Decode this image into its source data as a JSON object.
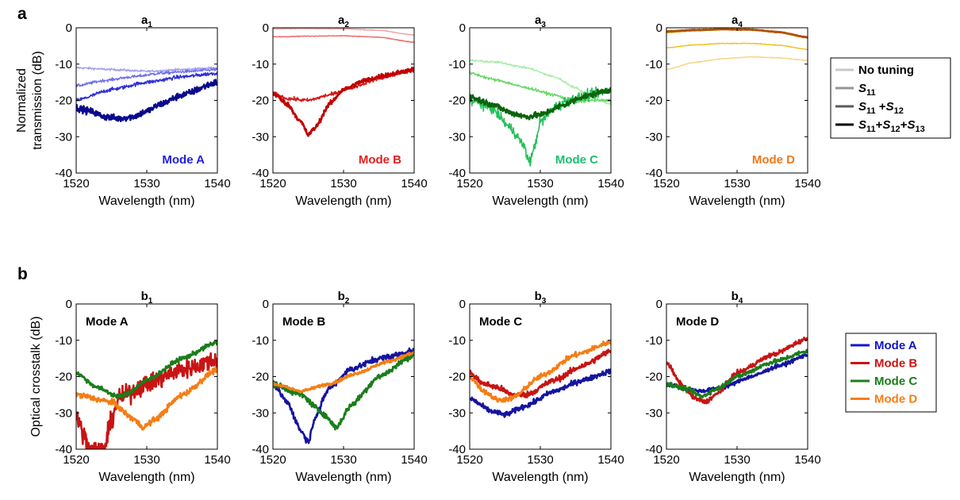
{
  "figure": {
    "row_labels": [
      "a",
      "b"
    ]
  },
  "chart_data": [
    {
      "panel": "a1",
      "type": "line",
      "title": "a",
      "title_sub": "1",
      "xlabel": "Wavelength (nm)",
      "ylabel": "Normalized\ntransmission (dB)",
      "xlim": [
        1520,
        1540
      ],
      "ylim": [
        -40,
        0
      ],
      "xticks": [
        1520,
        1530,
        1540
      ],
      "yticks": [
        0,
        -10,
        -20,
        -30,
        -40
      ],
      "annotation": {
        "text": "Mode A",
        "color": "#1f1fe0"
      },
      "series": [
        {
          "color": "#a0a0f0",
          "width": 1.4,
          "noise": 0.3,
          "x": [
            1520,
            1525,
            1530,
            1535,
            1540
          ],
          "y": [
            -11,
            -11.5,
            -12,
            -11.5,
            -11
          ]
        },
        {
          "color": "#7070e8",
          "width": 1.4,
          "noise": 0.4,
          "x": [
            1520,
            1524,
            1528,
            1532,
            1536,
            1540
          ],
          "y": [
            -16,
            -14.5,
            -13.5,
            -12.5,
            -12,
            -11.5
          ]
        },
        {
          "color": "#3030d8",
          "width": 1.6,
          "noise": 0.5,
          "x": [
            1520,
            1525,
            1530,
            1535,
            1540
          ],
          "y": [
            -20,
            -17,
            -15,
            -13.5,
            -12.5
          ]
        },
        {
          "color": "#0a0a8c",
          "width": 2.6,
          "noise": 0.9,
          "x": [
            1520,
            1522,
            1524,
            1526,
            1528,
            1530,
            1532,
            1535,
            1540
          ],
          "y": [
            -22,
            -23,
            -24.5,
            -25,
            -24.5,
            -23,
            -21,
            -18.5,
            -15
          ]
        }
      ]
    },
    {
      "panel": "a2",
      "type": "line",
      "title": "a",
      "title_sub": "2",
      "xlabel": "Wavelength (nm)",
      "ylabel": "",
      "xlim": [
        1520,
        1540
      ],
      "ylim": [
        -40,
        0
      ],
      "xticks": [
        1520,
        1530,
        1540
      ],
      "yticks": [
        0,
        -10,
        -20,
        -30,
        -40
      ],
      "annotation": {
        "text": "Mode B",
        "color": "#e02020"
      },
      "series": [
        {
          "color": "#f4a0a0",
          "width": 1.4,
          "noise": 0.1,
          "x": [
            1520,
            1525,
            1530,
            1535,
            1540
          ],
          "y": [
            -0.3,
            -0.2,
            -0.3,
            -0.7,
            -2
          ]
        },
        {
          "color": "#ee6a6a",
          "width": 1.4,
          "noise": 0.1,
          "x": [
            1520,
            1525,
            1530,
            1535,
            1540
          ],
          "y": [
            -2.5,
            -2.3,
            -2.2,
            -2.6,
            -4
          ]
        },
        {
          "color": "#d81818",
          "width": 1.6,
          "noise": 0.5,
          "x": [
            1520,
            1522,
            1525,
            1528,
            1531,
            1535,
            1540
          ],
          "y": [
            -18,
            -19.5,
            -20,
            -18.5,
            -16.5,
            -14,
            -11.5
          ]
        },
        {
          "color": "#c00000",
          "width": 2.6,
          "noise": 0.6,
          "x": [
            1520,
            1522,
            1524,
            1525,
            1526,
            1528,
            1530,
            1533,
            1536,
            1540
          ],
          "y": [
            -18,
            -21,
            -26,
            -29.5,
            -27.5,
            -21,
            -17,
            -14.5,
            -13,
            -11.5
          ]
        }
      ]
    },
    {
      "panel": "a3",
      "type": "line",
      "title": "a",
      "title_sub": "3",
      "xlabel": "Wavelength (nm)",
      "ylabel": "",
      "xlim": [
        1520,
        1540
      ],
      "ylim": [
        -40,
        0
      ],
      "xticks": [
        1520,
        1530,
        1540
      ],
      "yticks": [
        0,
        -10,
        -20,
        -30,
        -40
      ],
      "annotation": {
        "text": "Mode C",
        "color": "#1ec070"
      },
      "series": [
        {
          "color": "#a8eca8",
          "width": 1.4,
          "noise": 0.3,
          "x": [
            1520,
            1524,
            1528,
            1532,
            1535,
            1537,
            1540
          ],
          "y": [
            -9,
            -9.5,
            -11,
            -13.5,
            -16.5,
            -19,
            -21
          ]
        },
        {
          "color": "#66d866",
          "width": 1.4,
          "noise": 0.4,
          "x": [
            1520,
            1524,
            1528,
            1532,
            1535,
            1537,
            1540
          ],
          "y": [
            -12.5,
            -14.5,
            -16.5,
            -18.5,
            -20.5,
            -20,
            -20
          ]
        },
        {
          "color": "#22c058",
          "width": 1.6,
          "noise": 1.4,
          "x": [
            1520,
            1523,
            1526,
            1527.5,
            1528.5,
            1529,
            1530,
            1532,
            1534,
            1537,
            1540
          ],
          "y": [
            -20,
            -22,
            -28,
            -32,
            -37,
            -34,
            -26,
            -22,
            -20,
            -18.5,
            -17
          ]
        },
        {
          "color": "#0a640a",
          "width": 2.6,
          "noise": 0.8,
          "x": [
            1520,
            1523,
            1526,
            1528,
            1530,
            1533,
            1536,
            1540
          ],
          "y": [
            -19,
            -21,
            -23.5,
            -24.5,
            -24,
            -21.5,
            -19,
            -17
          ]
        }
      ]
    },
    {
      "panel": "a4",
      "type": "line",
      "title": "a",
      "title_sub": "4",
      "xlabel": "Wavelength (nm)",
      "ylabel": "",
      "xlim": [
        1520,
        1540
      ],
      "ylim": [
        -40,
        0
      ],
      "xticks": [
        1520,
        1530,
        1540
      ],
      "yticks": [
        0,
        -10,
        -20,
        -30,
        -40
      ],
      "annotation": {
        "text": "Mode D",
        "color": "#f07818"
      },
      "series": [
        {
          "color": "#f8d488",
          "width": 1.4,
          "noise": 0.1,
          "x": [
            1520,
            1524,
            1528,
            1532,
            1536,
            1540
          ],
          "y": [
            -11.5,
            -9.5,
            -8.5,
            -8,
            -8.3,
            -9
          ]
        },
        {
          "color": "#f0c020",
          "width": 1.4,
          "noise": 0.1,
          "x": [
            1520,
            1524,
            1528,
            1532,
            1536,
            1540
          ],
          "y": [
            -5.5,
            -4.7,
            -4.3,
            -4.3,
            -4.8,
            -6
          ]
        },
        {
          "color": "#e8a020",
          "width": 1.8,
          "noise": 0.1,
          "x": [
            1520,
            1524,
            1528,
            1532,
            1536,
            1540
          ],
          "y": [
            -1.3,
            -0.8,
            -0.5,
            -0.6,
            -1.3,
            -2.8
          ]
        },
        {
          "color": "#b05000",
          "width": 2.6,
          "noise": 0.1,
          "x": [
            1520,
            1524,
            1528,
            1532,
            1536,
            1540
          ],
          "y": [
            -1,
            -0.6,
            -0.4,
            -0.5,
            -1.2,
            -2.6
          ]
        }
      ]
    },
    {
      "panel": "b1",
      "type": "line",
      "title": "b",
      "title_sub": "1",
      "xlabel": "Wavelength (nm)",
      "ylabel": "Optical crosstalk (dB)",
      "xlim": [
        1520,
        1540
      ],
      "ylim": [
        -40,
        0
      ],
      "xticks": [
        1520,
        1530,
        1540
      ],
      "yticks": [
        0,
        -10,
        -20,
        -30,
        -40
      ],
      "annotation": {
        "text": "Mode A",
        "color": "#000000"
      },
      "series": [
        {
          "name": "Mode B",
          "color": "#c81414",
          "width": 2.6,
          "noise": 2.5,
          "x": [
            1520,
            1521,
            1522,
            1523,
            1524,
            1525,
            1526,
            1530,
            1535,
            1540
          ],
          "y": [
            -30,
            -36,
            -40,
            -40,
            -40,
            -32,
            -26,
            -22,
            -18,
            -15.5
          ]
        },
        {
          "name": "Mode C",
          "color": "#1a7d1a",
          "width": 2.6,
          "noise": 0.6,
          "x": [
            1520,
            1523,
            1526,
            1527,
            1530,
            1535,
            1540
          ],
          "y": [
            -19,
            -23,
            -25.5,
            -25,
            -21,
            -15,
            -10.5
          ]
        },
        {
          "name": "Mode D",
          "color": "#f57d14",
          "width": 2.6,
          "noise": 0.8,
          "x": [
            1520,
            1525,
            1528,
            1529.5,
            1531,
            1535,
            1540
          ],
          "y": [
            -25,
            -27,
            -31.5,
            -34,
            -32,
            -25,
            -18
          ]
        }
      ]
    },
    {
      "panel": "b2",
      "type": "line",
      "title": "b",
      "title_sub": "2",
      "xlabel": "Wavelength (nm)",
      "ylabel": "",
      "xlim": [
        1520,
        1540
      ],
      "ylim": [
        -40,
        0
      ],
      "xticks": [
        1520,
        1530,
        1540
      ],
      "yticks": [
        0,
        -10,
        -20,
        -30,
        -40
      ],
      "annotation": {
        "text": "Mode B",
        "color": "#000000"
      },
      "series": [
        {
          "name": "Mode A",
          "color": "#1414a0",
          "width": 2.6,
          "noise": 0.8,
          "x": [
            1520,
            1522,
            1524,
            1525,
            1526,
            1528,
            1531,
            1535,
            1540
          ],
          "y": [
            -22,
            -27,
            -35,
            -38,
            -31,
            -23,
            -18,
            -15,
            -13
          ]
        },
        {
          "name": "Mode C",
          "color": "#1a7d1a",
          "width": 2.6,
          "noise": 0.8,
          "x": [
            1520,
            1524,
            1527,
            1529,
            1531,
            1535,
            1540
          ],
          "y": [
            -22,
            -25,
            -30,
            -34,
            -28,
            -20,
            -14
          ]
        },
        {
          "name": "Mode D",
          "color": "#f57d14",
          "width": 2.6,
          "noise": 0.4,
          "x": [
            1520,
            1524,
            1528,
            1532,
            1536,
            1540
          ],
          "y": [
            -22,
            -24,
            -22,
            -19,
            -16,
            -13.5
          ]
        }
      ]
    },
    {
      "panel": "b3",
      "type": "line",
      "title": "b",
      "title_sub": "3",
      "xlabel": "Wavelength (nm)",
      "ylabel": "",
      "xlim": [
        1520,
        1540
      ],
      "ylim": [
        -40,
        0
      ],
      "xticks": [
        1520,
        1530,
        1540
      ],
      "yticks": [
        0,
        -10,
        -20,
        -30,
        -40
      ],
      "annotation": {
        "text": "Mode C",
        "color": "#000000"
      },
      "series": [
        {
          "name": "Mode A",
          "color": "#1414a0",
          "width": 2.6,
          "noise": 0.7,
          "x": [
            1520,
            1523,
            1525,
            1528,
            1532,
            1536,
            1540
          ],
          "y": [
            -26,
            -29.5,
            -30.5,
            -28,
            -24,
            -21,
            -18.5
          ]
        },
        {
          "name": "Mode B",
          "color": "#c81414",
          "width": 2.6,
          "noise": 0.8,
          "x": [
            1520,
            1522,
            1524,
            1526,
            1528,
            1532,
            1536,
            1540
          ],
          "y": [
            -19,
            -22,
            -23,
            -25,
            -25,
            -21,
            -17,
            -13
          ]
        },
        {
          "name": "Mode D",
          "color": "#f57d14",
          "width": 2.6,
          "noise": 0.7,
          "x": [
            1520,
            1522,
            1524,
            1526,
            1530,
            1535,
            1540
          ],
          "y": [
            -20,
            -24,
            -26.5,
            -26,
            -20,
            -14,
            -10.5
          ]
        }
      ]
    },
    {
      "panel": "b4",
      "type": "line",
      "title": "b",
      "title_sub": "4",
      "xlabel": "Wavelength (nm)",
      "ylabel": "",
      "xlim": [
        1520,
        1540
      ],
      "ylim": [
        -40,
        0
      ],
      "xticks": [
        1520,
        1530,
        1540
      ],
      "yticks": [
        0,
        -10,
        -20,
        -30,
        -40
      ],
      "annotation": {
        "text": "Mode D",
        "color": "#000000"
      },
      "series": [
        {
          "name": "Mode A",
          "color": "#1414a0",
          "width": 2.6,
          "noise": 0.5,
          "x": [
            1520,
            1523,
            1525,
            1528,
            1532,
            1536,
            1540
          ],
          "y": [
            -22,
            -23.5,
            -24,
            -23,
            -20,
            -17,
            -14
          ]
        },
        {
          "name": "Mode B",
          "color": "#c81414",
          "width": 2.6,
          "noise": 0.6,
          "x": [
            1520,
            1522,
            1524,
            1525.5,
            1527,
            1530,
            1535,
            1540
          ],
          "y": [
            -16,
            -22,
            -26,
            -27,
            -25,
            -19,
            -14,
            -9.5
          ]
        },
        {
          "name": "Mode C",
          "color": "#1a7d1a",
          "width": 2.6,
          "noise": 0.6,
          "x": [
            1520,
            1523,
            1525,
            1527,
            1530,
            1535,
            1540
          ],
          "y": [
            -22,
            -23.5,
            -25.5,
            -23.5,
            -20,
            -16,
            -13
          ]
        }
      ]
    }
  ],
  "legend_a": {
    "entries": [
      {
        "color": "#c8c8c8",
        "parts": [
          {
            "t": "No tuning"
          }
        ]
      },
      {
        "color": "#969696",
        "parts": [
          {
            "t": "S",
            "it": true
          },
          {
            "t": "11",
            "sub": true
          }
        ]
      },
      {
        "color": "#5a5a5a",
        "parts": [
          {
            "t": "S",
            "it": true
          },
          {
            "t": "11",
            "sub": true
          },
          {
            "t": " +"
          },
          {
            "t": "S",
            "it": true
          },
          {
            "t": "12",
            "sub": true
          }
        ]
      },
      {
        "color": "#000000",
        "parts": [
          {
            "t": "S",
            "it": true
          },
          {
            "t": "11",
            "sub": true
          },
          {
            "t": "+"
          },
          {
            "t": "S",
            "it": true
          },
          {
            "t": "12",
            "sub": true
          },
          {
            "t": "+"
          },
          {
            "t": "S",
            "it": true
          },
          {
            "t": "13",
            "sub": true
          }
        ]
      }
    ]
  },
  "legend_b": {
    "entries": [
      {
        "color": "#1414c8",
        "label": "Mode A"
      },
      {
        "color": "#c81414",
        "label": "Mode B"
      },
      {
        "color": "#1a7d1a",
        "label": "Mode C"
      },
      {
        "color": "#f57d14",
        "label": "Mode D"
      }
    ]
  }
}
